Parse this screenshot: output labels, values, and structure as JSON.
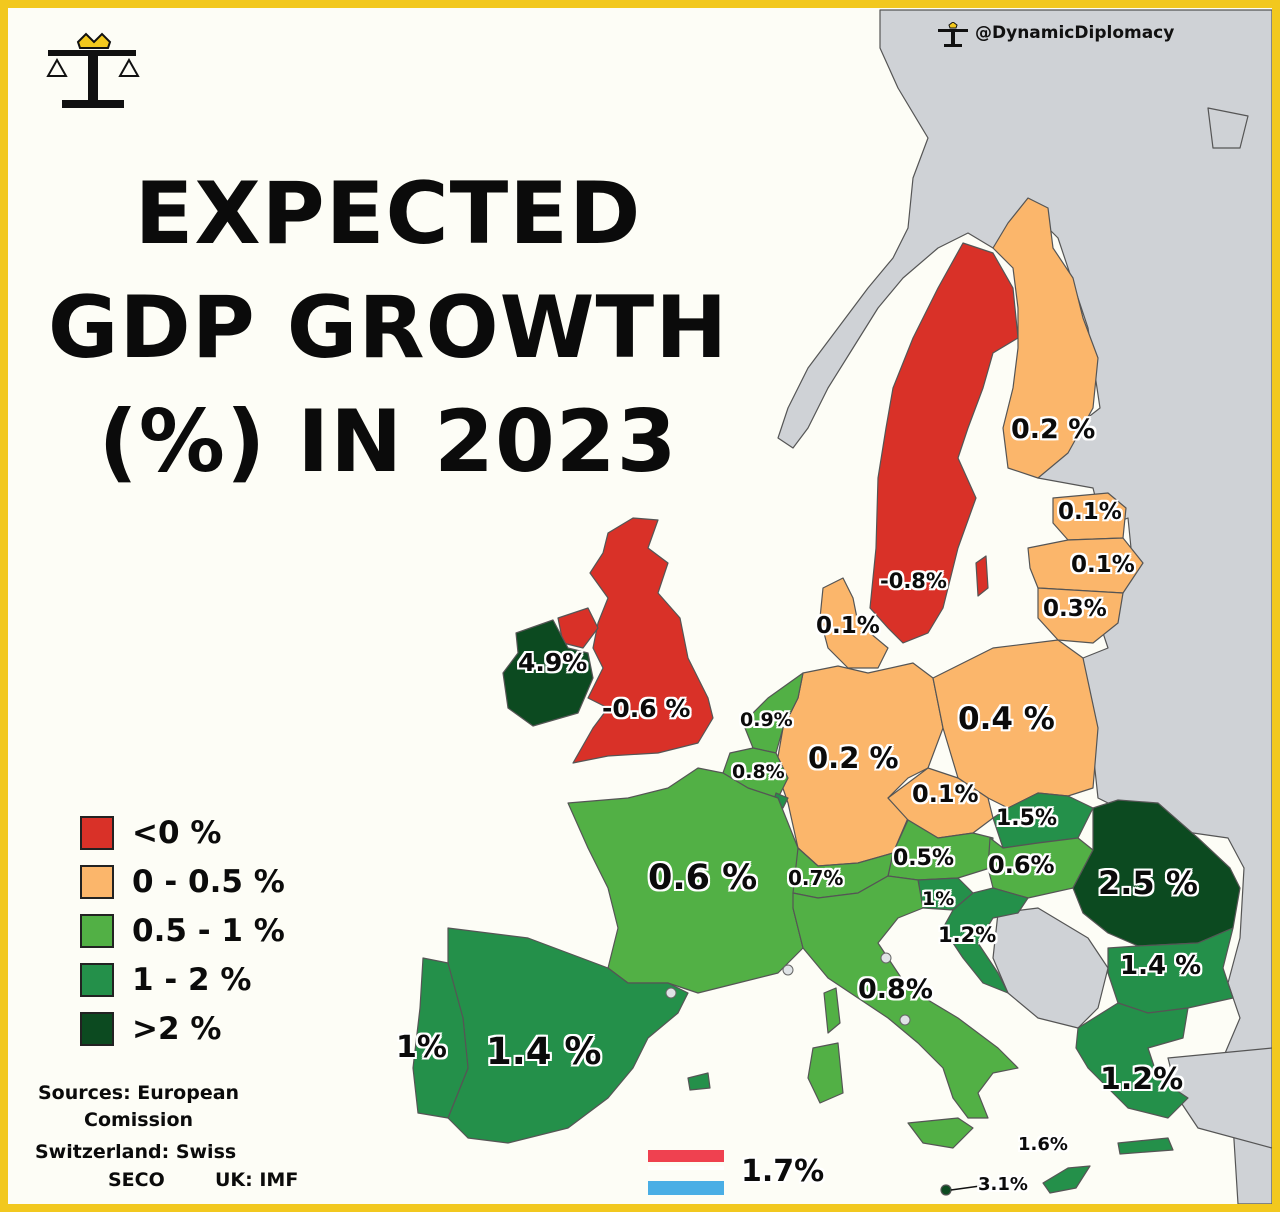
{
  "brand": {
    "handle": "@DynamicDiplomacy"
  },
  "title": {
    "line1": "EXPECTED",
    "line2": "GDP GROWTH",
    "line3": "(%) IN 2023"
  },
  "legend": [
    {
      "label": "<0 %",
      "color": "#d93128"
    },
    {
      "label": "0 - 0.5 %",
      "color": "#fbb66b"
    },
    {
      "label": "0.5 - 1 %",
      "color": "#52b045"
    },
    {
      "label": "1 - 2 %",
      "color": "#24904a"
    },
    {
      "label": ">2 %",
      "color": "#0c4a20"
    }
  ],
  "sources": {
    "line1": "Sources: European",
    "line2": "Comission",
    "line3": "Switzerland: Swiss",
    "line4a": "SECO",
    "line4b": "UK: IMF"
  },
  "countries": {
    "ireland": "4.9%",
    "uk": "-0.6 %",
    "sweden": "-0.8%",
    "finland": "0.2 %",
    "estonia": "0.1%",
    "latvia": "0.1%",
    "lithuania": "0.3%",
    "denmark": "0.1%",
    "netherlands": "0.9%",
    "belgium": "0.8%",
    "germany": "0.2 %",
    "poland": "0.4 %",
    "czechia": "0.1%",
    "slovakia": "1.5%",
    "austria": "0.5%",
    "hungary": "0.6%",
    "switzerland": "0.7%",
    "france": "0.6 %",
    "slovenia": "1%",
    "croatia": "1.2%",
    "romania": "2.5 %",
    "bulgaria": "1.4 %",
    "italy": "0.8%",
    "portugal": "1%",
    "spain": "1.4 %",
    "greece": "1.2%",
    "cyprus": "1.6%",
    "malta": "3.1%",
    "luxembourg": "1.7%"
  },
  "colors": {
    "neg": "#d93128",
    "low": "#fbb66b",
    "mid": "#52b045",
    "high": "#24904a",
    "top": "#0c4a20",
    "nonEU": "#cfd2d6",
    "sea": "#fdfdf6",
    "frame": "#f2c81e"
  }
}
